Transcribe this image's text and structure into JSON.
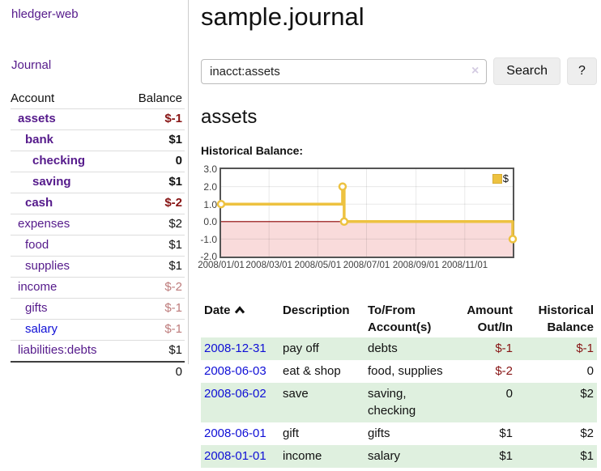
{
  "colors": {
    "accent_purple": "#551A8B",
    "link_blue": "#0f0fd6",
    "negative_strong": "#871414",
    "negative_muted": "#bd7b7b",
    "row_green": "#dff0df",
    "series_gold": "#edc240",
    "chart_border": "#545454",
    "negative_region": "#f9dbdb",
    "zero_line": "#8b0000"
  },
  "app": {
    "brand": "hledger-web",
    "nav_journal": "Journal"
  },
  "sidebar": {
    "account_header": "Account",
    "balance_header": "Balance",
    "accounts": [
      {
        "name": "assets",
        "depth": 1,
        "bold": true,
        "balance": "$-1",
        "bclass": "neg"
      },
      {
        "name": "bank",
        "depth": 2,
        "bold": true,
        "balance": "$1",
        "bclass": "pos"
      },
      {
        "name": "checking",
        "depth": 3,
        "bold": true,
        "balance": "0",
        "bclass": "pos"
      },
      {
        "name": "saving",
        "depth": 3,
        "bold": true,
        "balance": "$1",
        "bclass": "pos"
      },
      {
        "name": "cash",
        "depth": 2,
        "bold": true,
        "balance": "$-2",
        "bclass": "neg"
      },
      {
        "name": "expenses",
        "depth": 1,
        "bold": false,
        "balance": "$2",
        "bclass": "pos"
      },
      {
        "name": "food",
        "depth": 2,
        "bold": false,
        "balance": "$1",
        "bclass": "pos"
      },
      {
        "name": "supplies",
        "depth": 2,
        "bold": false,
        "balance": "$1",
        "bclass": "pos"
      },
      {
        "name": "income",
        "depth": 1,
        "bold": false,
        "balance": "$-2",
        "bclass": "negmuted"
      },
      {
        "name": "gifts",
        "depth": 2,
        "bold": false,
        "balance": "$-1",
        "bclass": "negmuted"
      },
      {
        "name": "salary",
        "depth": 2,
        "bold": false,
        "balance": "$-1",
        "bclass": "negmuted",
        "blue": true
      },
      {
        "name": "liabilities:debts",
        "depth": 1,
        "bold": false,
        "balance": "$1",
        "bclass": "pos"
      }
    ],
    "total": "0"
  },
  "header": {
    "title": "sample.journal"
  },
  "search": {
    "value": "inacct:assets",
    "placeholder": "",
    "clear_icon": "×",
    "button_label": "Search",
    "help_label": "?"
  },
  "account_page": {
    "title": "assets",
    "chart_title": "Historical Balance:"
  },
  "chart_data": {
    "type": "line",
    "title": "Historical Balance:",
    "legend": {
      "label": "$",
      "position": "top-right-inside"
    },
    "grid": true,
    "step": true,
    "x_axis": {
      "range": [
        "2008/01/01",
        "2008/12/31"
      ],
      "range_days": [
        0,
        365
      ],
      "ticks": [
        {
          "label": "2008/01/01",
          "day": 0
        },
        {
          "label": "2008/03/01",
          "day": 60
        },
        {
          "label": "2008/05/01",
          "day": 121
        },
        {
          "label": "2008/07/01",
          "day": 182
        },
        {
          "label": "2008/09/01",
          "day": 244
        },
        {
          "label": "2008/11/01",
          "day": 305
        }
      ]
    },
    "y_axis": {
      "range": [
        -2,
        3
      ],
      "ticks": [
        "3.0",
        "2.0",
        "1.0",
        "0.0",
        "-1.0",
        "-2.0"
      ],
      "tick_values": [
        3,
        2,
        1,
        0,
        -1,
        -2
      ]
    },
    "series": [
      {
        "name": "$",
        "color": "#edc240",
        "points": [
          {
            "date": "2008-01-01",
            "day": 0,
            "value": 1
          },
          {
            "date": "2008-06-01",
            "day": 152,
            "value": 2
          },
          {
            "date": "2008-06-03",
            "day": 154,
            "value": 0
          },
          {
            "date": "2008-12-31",
            "day": 365,
            "value": -1
          }
        ]
      }
    ],
    "negative_region": {
      "below": 0,
      "color": "#f9dbdb"
    },
    "zero_line_color": "#8b0000"
  },
  "register": {
    "columns": {
      "date": "Date",
      "description": "Description",
      "accounts": "To/From Account(s)",
      "amount": "Amount Out/In",
      "balance": "Historical Balance"
    },
    "sort": {
      "column": "date",
      "direction": "ascending"
    },
    "rows": [
      {
        "date": "2008-12-31",
        "description": "pay off",
        "accounts": "debts",
        "amount": "$-1",
        "aclass": "neg",
        "balance": "$-1",
        "blclass": "neg",
        "green": true
      },
      {
        "date": "2008-06-03",
        "description": "eat & shop",
        "accounts": "food, supplies",
        "amount": "$-2",
        "aclass": "neg",
        "balance": "0",
        "blclass": "pos",
        "green": false
      },
      {
        "date": "2008-06-02",
        "description": "save",
        "accounts": "saving, checking",
        "amount": "0",
        "aclass": "pos",
        "balance": "$2",
        "blclass": "pos",
        "green": true
      },
      {
        "date": "2008-06-01",
        "description": "gift",
        "accounts": "gifts",
        "amount": "$1",
        "aclass": "pos",
        "balance": "$2",
        "blclass": "pos",
        "green": false
      },
      {
        "date": "2008-01-01",
        "description": "income",
        "accounts": "salary",
        "amount": "$1",
        "aclass": "pos",
        "balance": "$1",
        "blclass": "pos",
        "green": true
      }
    ]
  }
}
